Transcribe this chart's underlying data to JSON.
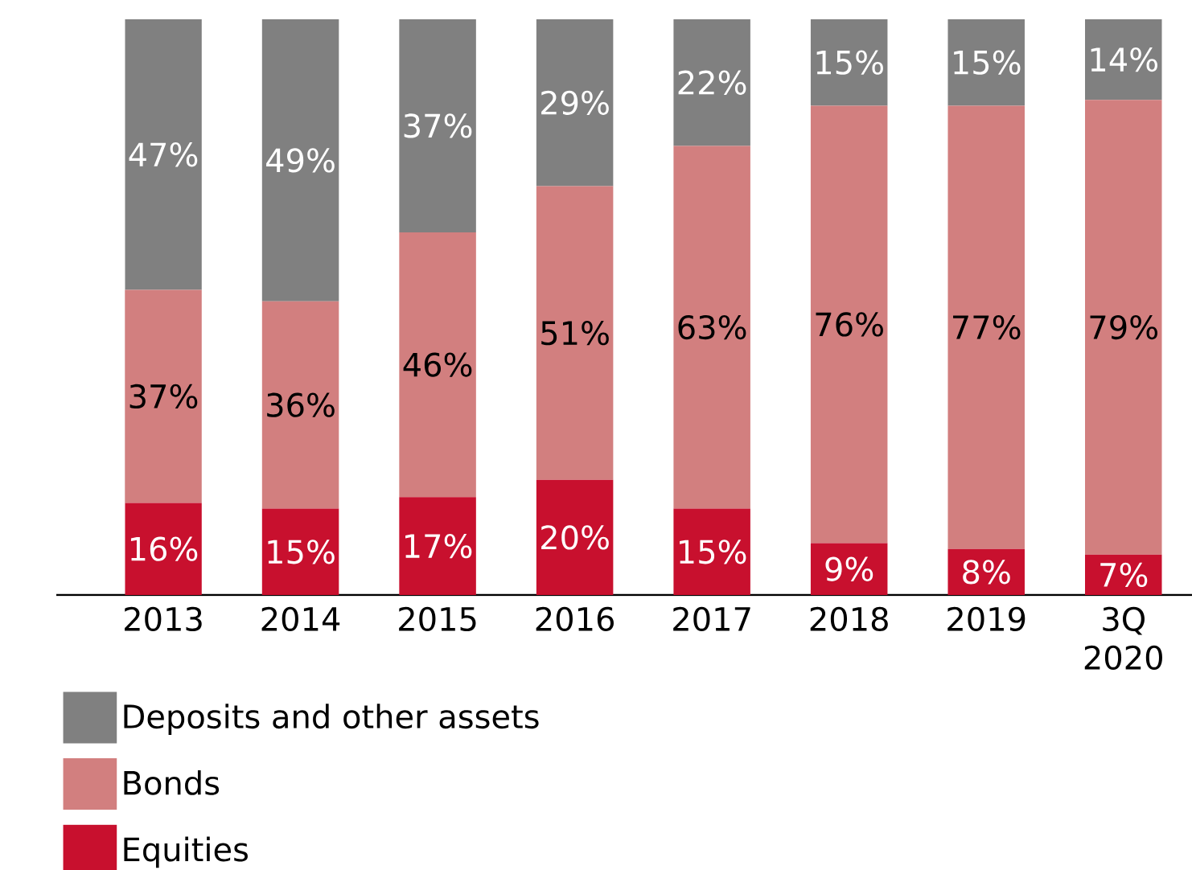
{
  "chart_data": {
    "type": "bar",
    "stacked": true,
    "legend": "bottom",
    "categories": [
      "2013",
      "2014",
      "2015",
      "2016",
      "2017",
      "2018",
      "2019",
      "3Q 2020"
    ],
    "series": [
      {
        "name": "Equities",
        "color": "#c8102e",
        "values": [
          16,
          15,
          17,
          20,
          15,
          9,
          8,
          7
        ],
        "value_labels": [
          "16%",
          "15%",
          "17%",
          "20%",
          "15%",
          "9%",
          "8%",
          "7%"
        ]
      },
      {
        "name": "Bonds",
        "color": "#d27f7f",
        "values": [
          37,
          36,
          46,
          51,
          63,
          76,
          77,
          79
        ],
        "value_labels": [
          "37%",
          "36%",
          "46%",
          "51%",
          "63%",
          "76%",
          "77%",
          "79%"
        ]
      },
      {
        "name": "Deposits and other assets",
        "color": "#808080",
        "values": [
          47,
          49,
          37,
          29,
          22,
          15,
          15,
          14
        ],
        "value_labels": [
          "47%",
          "49%",
          "37%",
          "29%",
          "22%",
          "15%",
          "15%",
          "14%"
        ]
      }
    ]
  }
}
